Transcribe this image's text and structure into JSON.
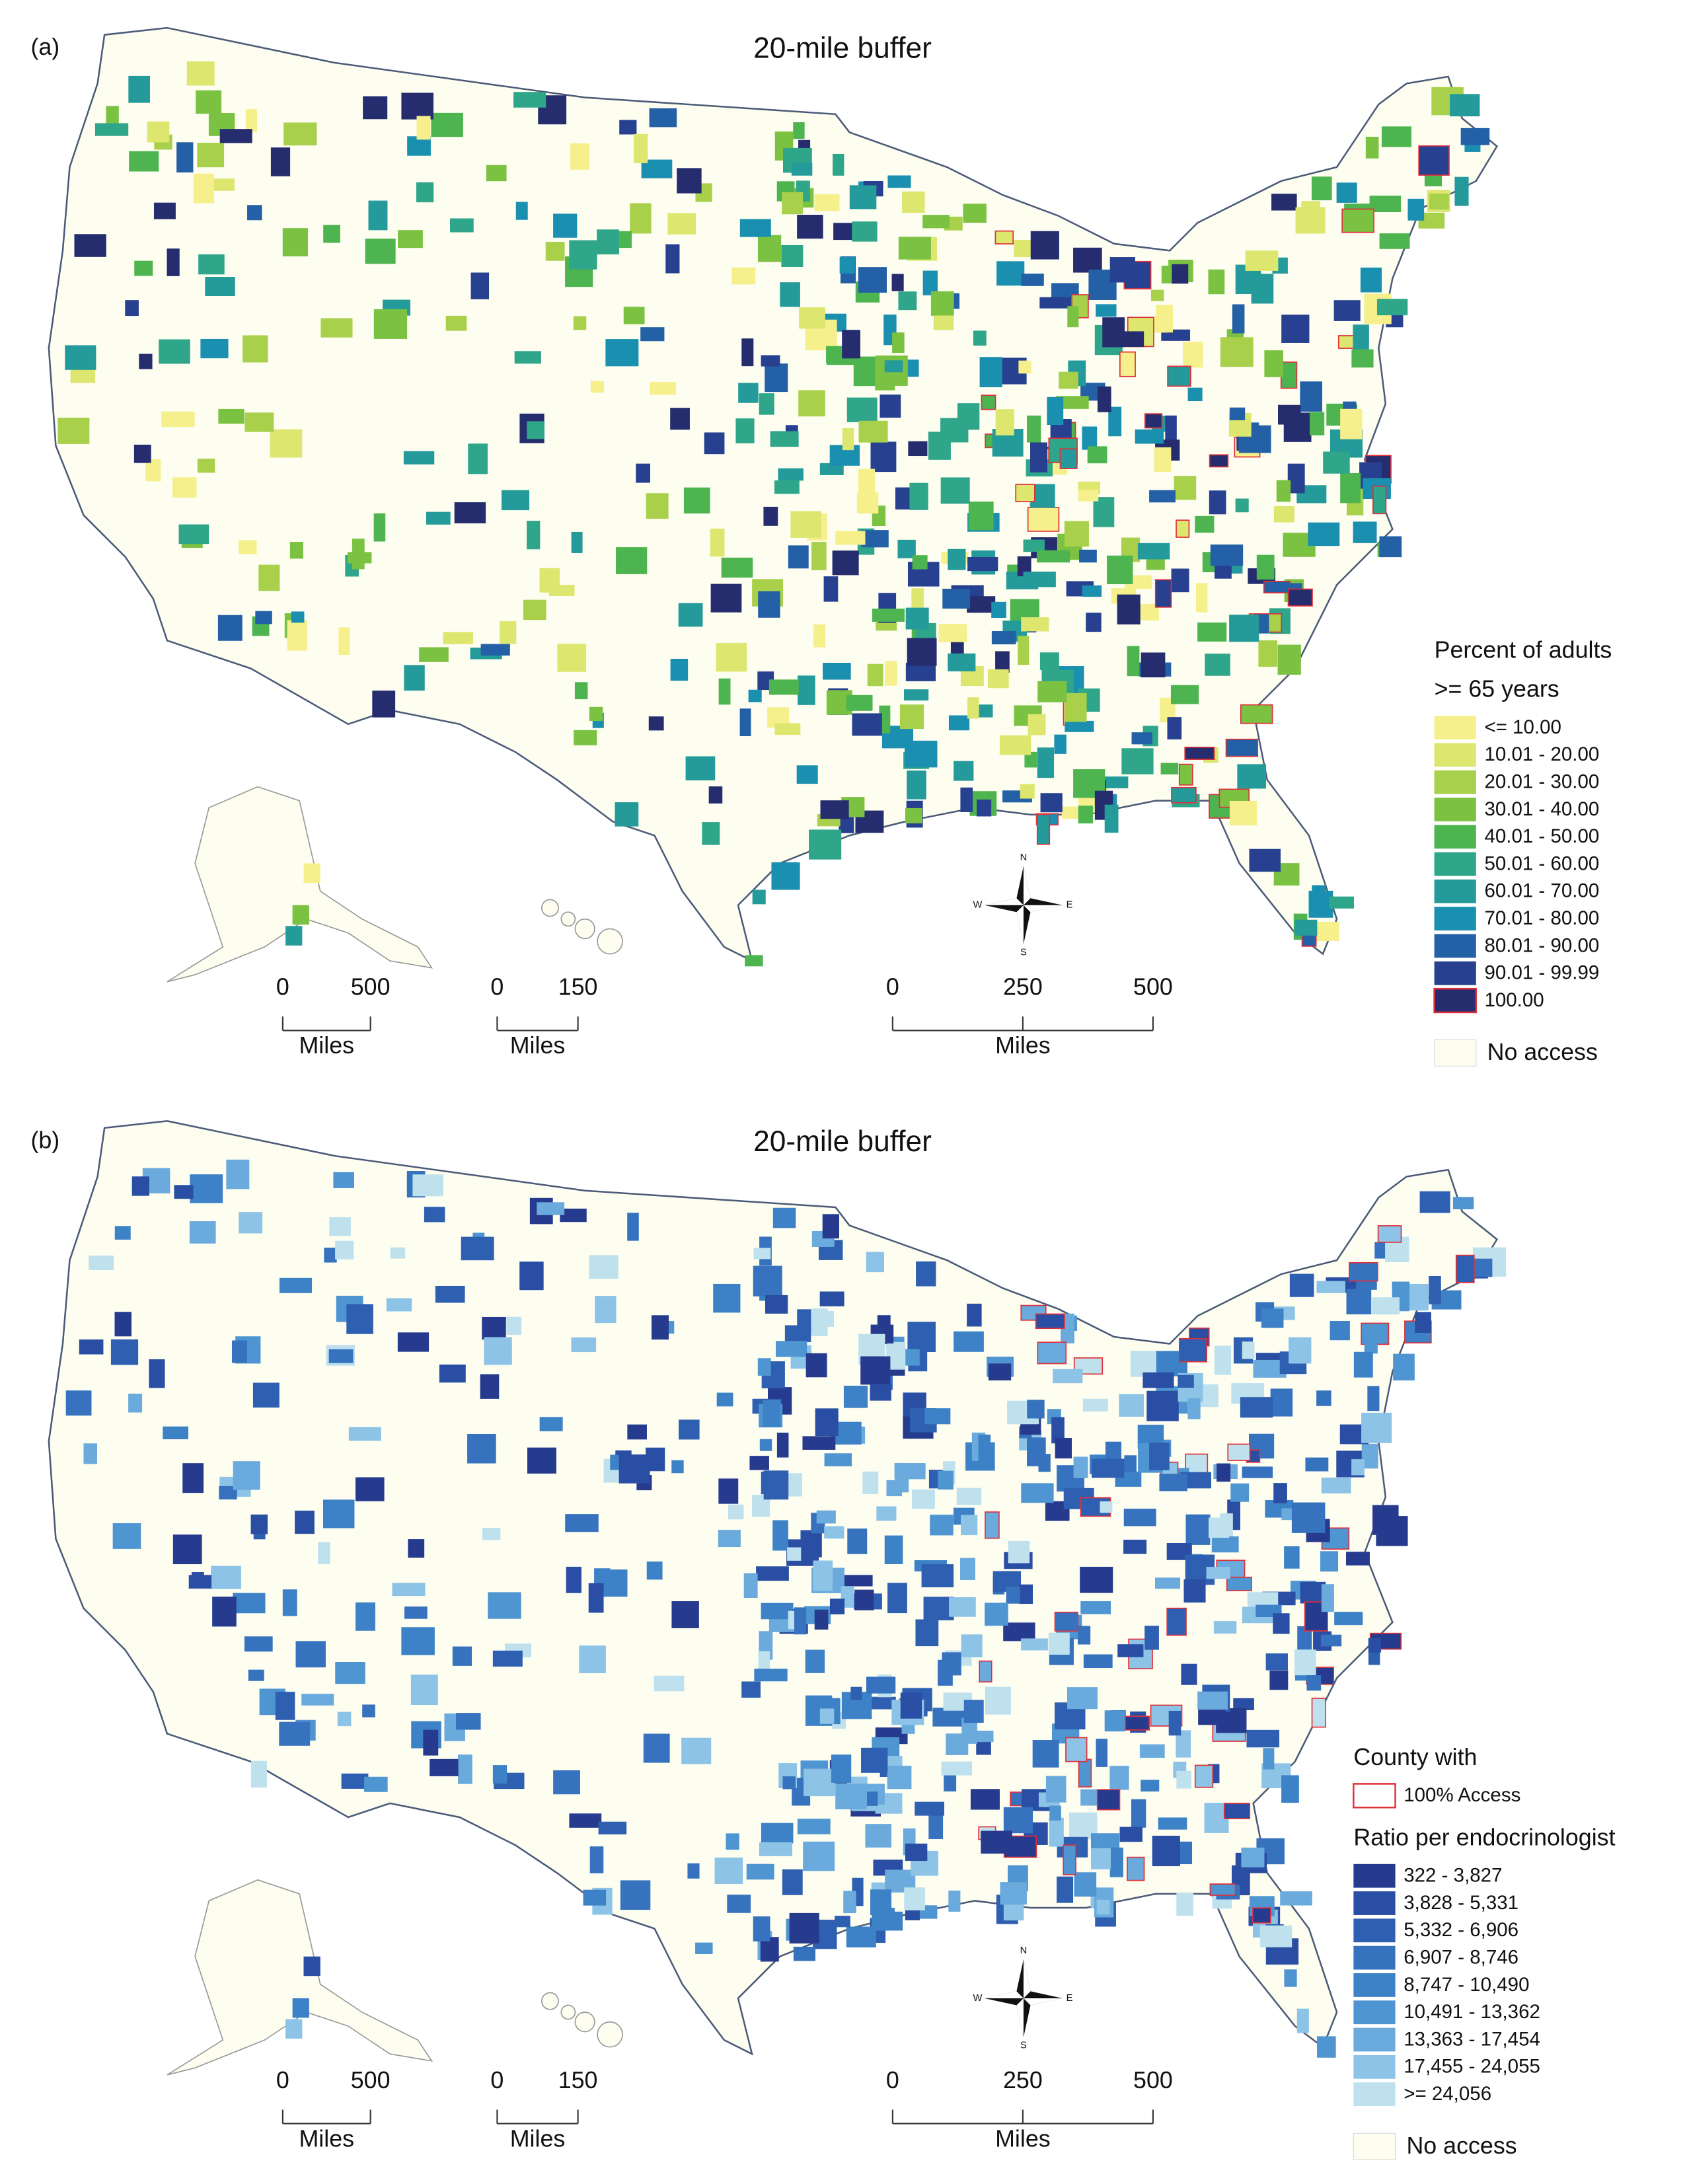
{
  "panels": [
    {
      "label": "(a)",
      "title": "20-mile buffer",
      "legend": {
        "sections": [
          {
            "title": [
              "Percent of adults",
              ">= 65 years"
            ],
            "items": [
              {
                "label": "<= 10.00",
                "color": "#f6f08c"
              },
              {
                "label": "10.01 - 20.00",
                "color": "#dde66e"
              },
              {
                "label": "20.01 - 30.00",
                "color": "#a8d04a"
              },
              {
                "label": "30.01 - 40.00",
                "color": "#7cc242"
              },
              {
                "label": "40.01 - 50.00",
                "color": "#4db450"
              },
              {
                "label": "50.01 - 60.00",
                "color": "#2fa58a"
              },
              {
                "label": "60.01 - 70.00",
                "color": "#249a9a"
              },
              {
                "label": "70.01 - 80.00",
                "color": "#1a8fb0"
              },
              {
                "label": "80.01 - 90.00",
                "color": "#2360a5"
              },
              {
                "label": "90.01 - 99.99",
                "color": "#27408f"
              },
              {
                "label": "100.00",
                "color": "#252d6e",
                "outline": "#e0303a"
              }
            ]
          }
        ],
        "no_access": {
          "label": "No access",
          "color": "#fdfdf0"
        }
      },
      "scale_bars": [
        {
          "ticks": [
            0,
            500
          ],
          "unit": "Miles"
        },
        {
          "ticks": [
            0,
            150
          ],
          "unit": "Miles"
        },
        {
          "ticks": [
            0,
            250,
            500
          ],
          "unit": "Miles"
        }
      ],
      "compass": {
        "n": "N",
        "s": "S",
        "e": "E",
        "w": "W"
      }
    },
    {
      "label": "(b)",
      "title": "20-mile buffer",
      "legend": {
        "sections": [
          {
            "title": [
              "County with"
            ],
            "items": [
              {
                "label": "100% Access",
                "color": "#ffffff",
                "outline": "#e0303a"
              }
            ]
          },
          {
            "title": [
              "Ratio per endocrinologist"
            ],
            "items": [
              {
                "label": "322 - 3,827",
                "color": "#263a8e"
              },
              {
                "label": "3,828 - 5,331",
                "color": "#2a4ea3"
              },
              {
                "label": "5,332 - 6,906",
                "color": "#2f5fb0"
              },
              {
                "label": "6,907 - 8,746",
                "color": "#3672bd"
              },
              {
                "label": "8,747 - 10,490",
                "color": "#3d82c6"
              },
              {
                "label": "10,491 - 13,362",
                "color": "#4e95d1"
              },
              {
                "label": "13,363 - 17,454",
                "color": "#6aaadc"
              },
              {
                "label": "17,455 - 24,055",
                "color": "#8dc3e6"
              },
              {
                "label": ">= 24,056",
                "color": "#bfe1ee"
              }
            ]
          }
        ],
        "no_access": {
          "label": "No access",
          "color": "#fdfdf0"
        }
      },
      "scale_bars": [
        {
          "ticks": [
            0,
            500
          ],
          "unit": "Miles"
        },
        {
          "ticks": [
            0,
            150
          ],
          "unit": "Miles"
        },
        {
          "ticks": [
            0,
            250,
            500
          ],
          "unit": "Miles"
        }
      ],
      "compass": {
        "n": "N",
        "s": "S",
        "e": "E",
        "w": "W"
      }
    }
  ]
}
